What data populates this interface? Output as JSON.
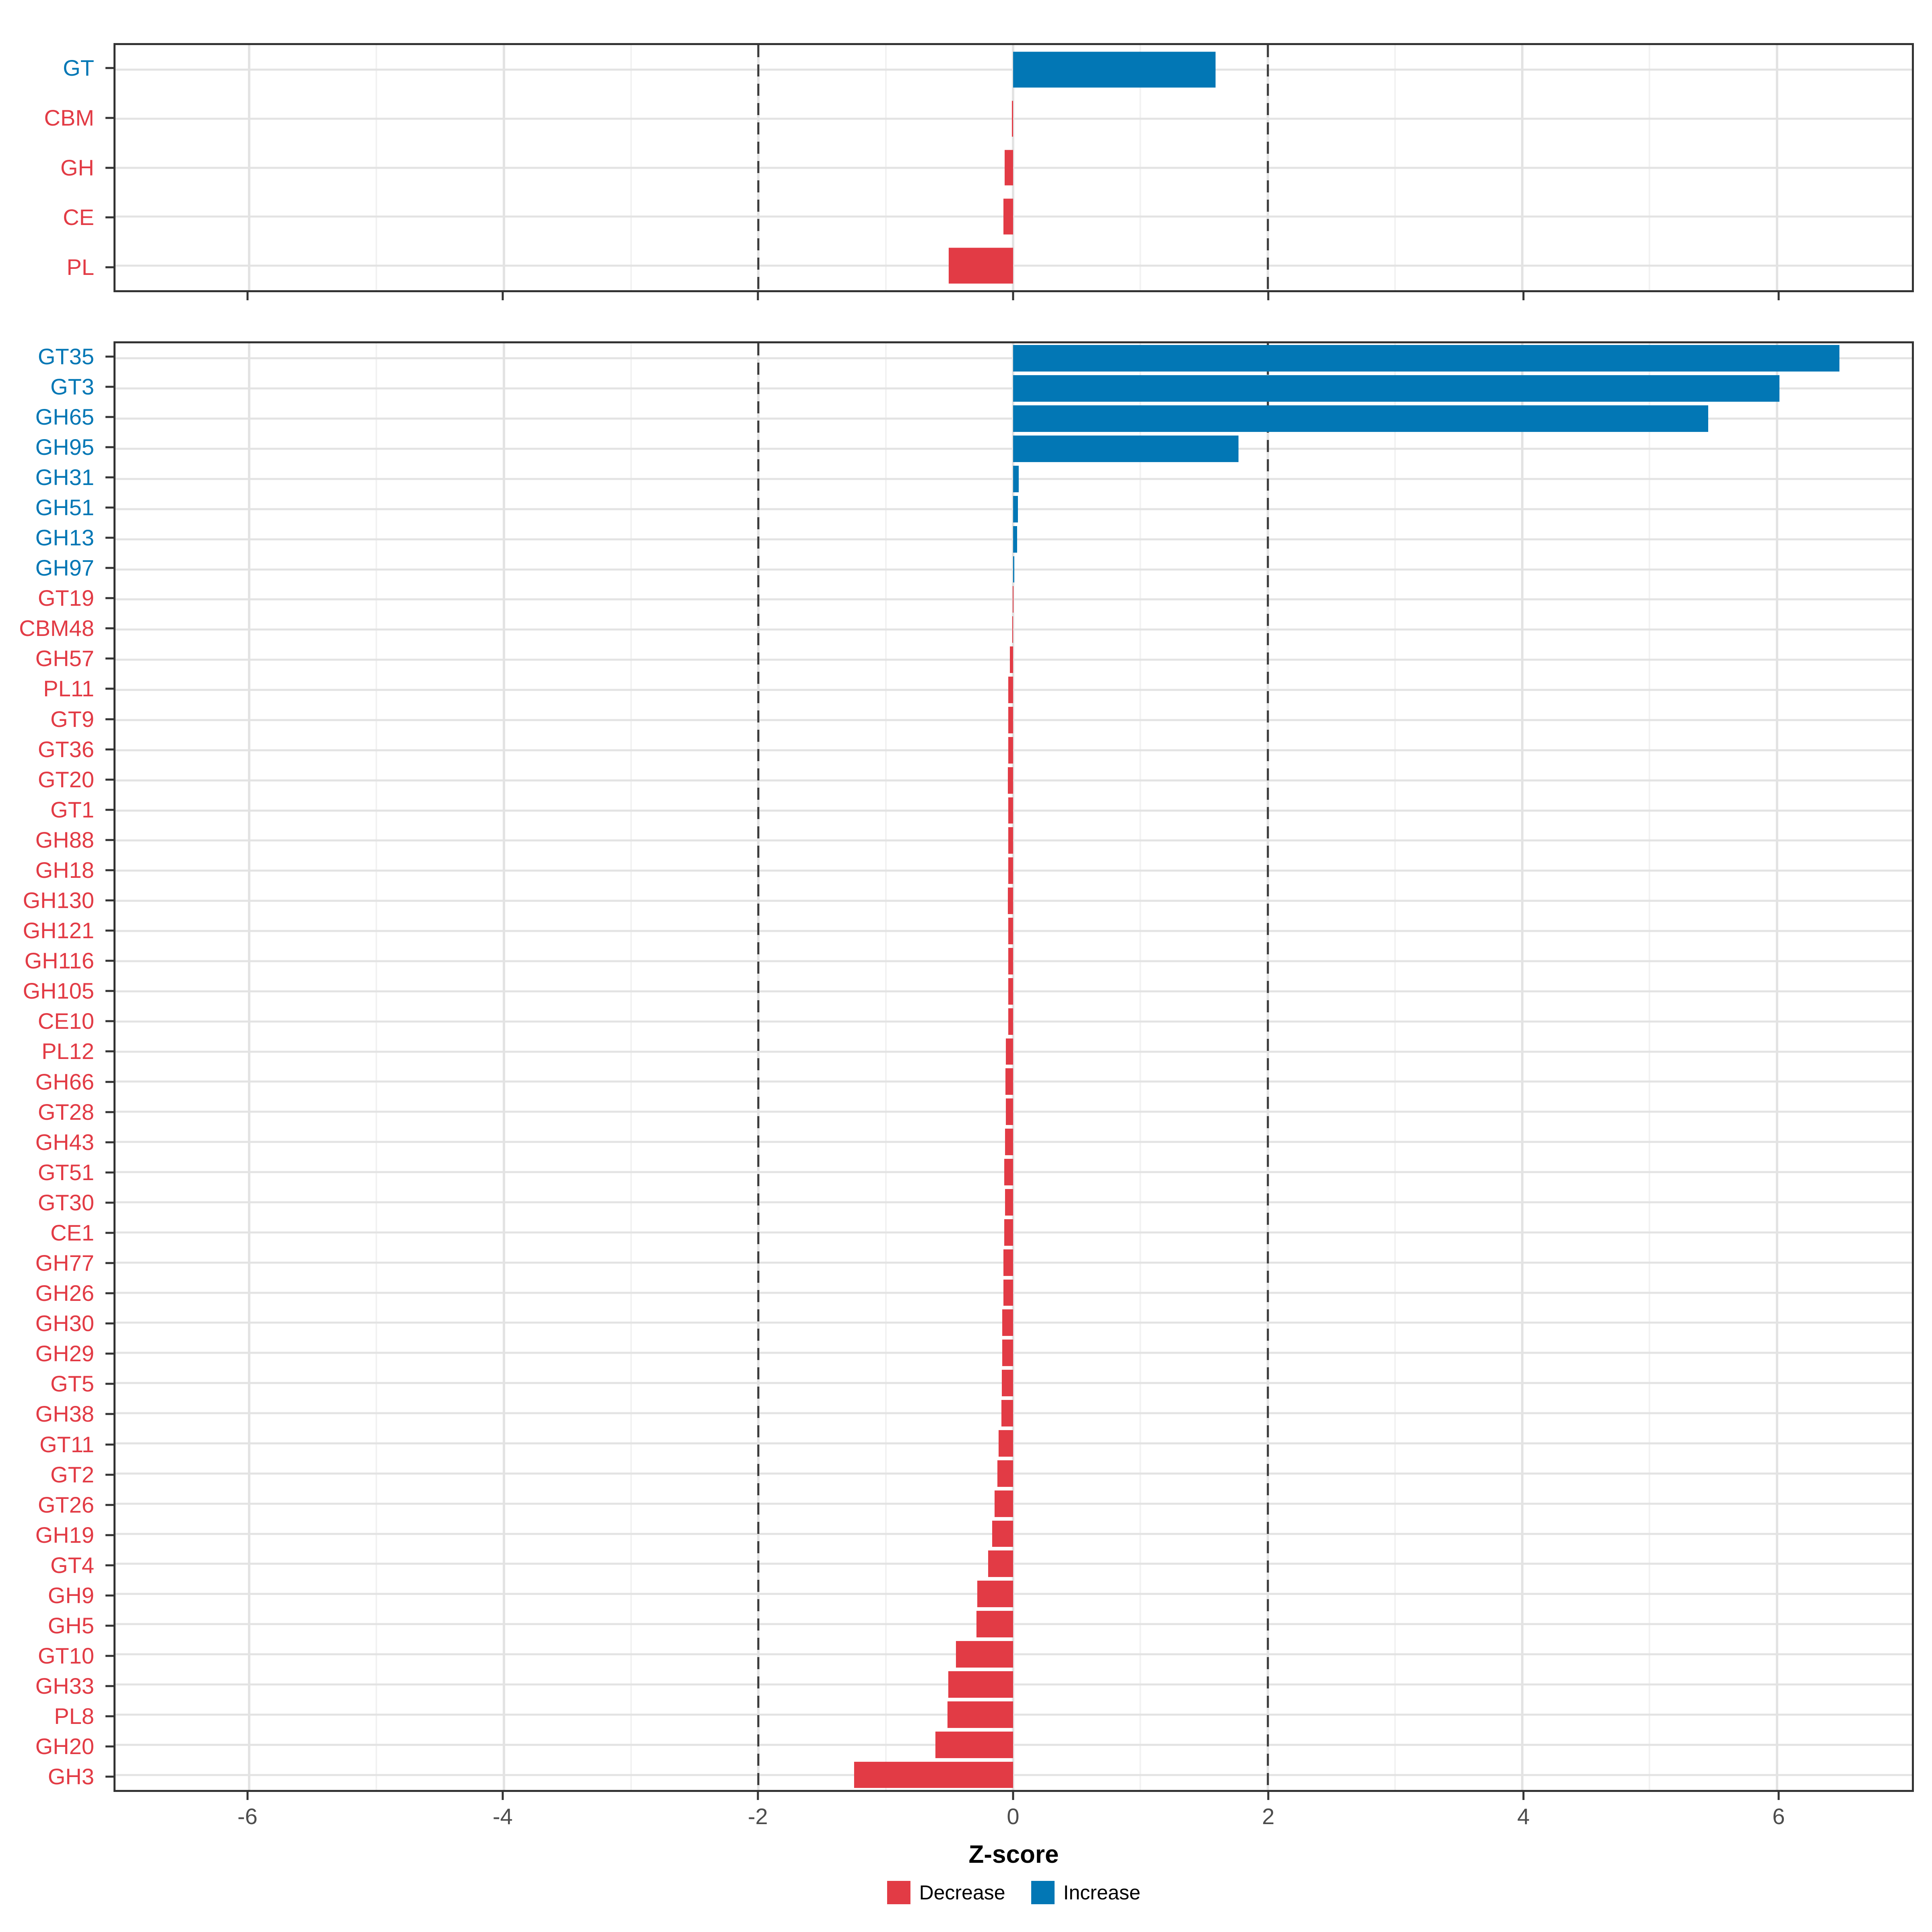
{
  "figure": {
    "background": "#FFFFFF",
    "colors": {
      "increase": "#0277B5",
      "decrease": "#E23B45",
      "grid_major": "#E3E3E3",
      "grid_minor": "#F2F2F2",
      "panel_border": "#333333",
      "dashed_line": "#3A3A3A",
      "axis_text": "#4D4D4D"
    }
  },
  "chart_data": {
    "type": "bar",
    "orientation": "horizontal",
    "title": "",
    "xlabel": "Z-score",
    "ylabel": "",
    "xlim": [
      -7.05,
      7.06
    ],
    "x_ticks": [
      -6,
      -4,
      -2,
      0,
      2,
      4,
      6
    ],
    "x_tick_labels": [
      "-6",
      "-4",
      "-2",
      "0",
      "2",
      "4",
      "6"
    ],
    "x_minor_ticks": [
      -5,
      -3,
      -1,
      1,
      3,
      5
    ],
    "reference_lines": [
      -2,
      2
    ],
    "grid": true,
    "legend_position": "bottom",
    "legend": [
      {
        "label": "Decrease",
        "color": "#E23B45",
        "key": "decrease"
      },
      {
        "label": "Increase",
        "color": "#0277B5",
        "key": "increase"
      }
    ],
    "panels": [
      {
        "name": "top",
        "rows": [
          {
            "label": "GT",
            "value": 1.59,
            "dir": "increase"
          },
          {
            "label": "CBM",
            "value": -0.01,
            "dir": "decrease"
          },
          {
            "label": "GH",
            "value": -0.066,
            "dir": "decrease"
          },
          {
            "label": "CE",
            "value": -0.077,
            "dir": "decrease"
          },
          {
            "label": "PL",
            "value": -0.506,
            "dir": "decrease"
          }
        ]
      },
      {
        "name": "bottom",
        "rows": [
          {
            "label": "GT35",
            "value": 6.49,
            "dir": "increase"
          },
          {
            "label": "GT3",
            "value": 6.02,
            "dir": "increase"
          },
          {
            "label": "GH65",
            "value": 5.46,
            "dir": "increase"
          },
          {
            "label": "GH95",
            "value": 1.77,
            "dir": "increase"
          },
          {
            "label": "GH31",
            "value": 0.045,
            "dir": "increase"
          },
          {
            "label": "GH51",
            "value": 0.037,
            "dir": "increase"
          },
          {
            "label": "GH13",
            "value": 0.032,
            "dir": "increase"
          },
          {
            "label": "GH97",
            "value": 0.01,
            "dir": "increase"
          },
          {
            "label": "GT19",
            "value": -0.003,
            "dir": "decrease"
          },
          {
            "label": "CBM48",
            "value": -0.006,
            "dir": "decrease"
          },
          {
            "label": "GH57",
            "value": -0.024,
            "dir": "decrease"
          },
          {
            "label": "PL11",
            "value": -0.039,
            "dir": "decrease"
          },
          {
            "label": "GT9",
            "value": -0.038,
            "dir": "decrease"
          },
          {
            "label": "GT36",
            "value": -0.039,
            "dir": "decrease"
          },
          {
            "label": "GT20",
            "value": -0.04,
            "dir": "decrease"
          },
          {
            "label": "GT1",
            "value": -0.038,
            "dir": "decrease"
          },
          {
            "label": "GH88",
            "value": -0.037,
            "dir": "decrease"
          },
          {
            "label": "GH18",
            "value": -0.039,
            "dir": "decrease"
          },
          {
            "label": "GH130",
            "value": -0.04,
            "dir": "decrease"
          },
          {
            "label": "GH121",
            "value": -0.038,
            "dir": "decrease"
          },
          {
            "label": "GH116",
            "value": -0.039,
            "dir": "decrease"
          },
          {
            "label": "GH105",
            "value": -0.038,
            "dir": "decrease"
          },
          {
            "label": "CE10",
            "value": -0.039,
            "dir": "decrease"
          },
          {
            "label": "PL12",
            "value": -0.056,
            "dir": "decrease"
          },
          {
            "label": "GH66",
            "value": -0.059,
            "dir": "decrease"
          },
          {
            "label": "GT28",
            "value": -0.058,
            "dir": "decrease"
          },
          {
            "label": "GH43",
            "value": -0.064,
            "dir": "decrease"
          },
          {
            "label": "GT51",
            "value": -0.068,
            "dir": "decrease"
          },
          {
            "label": "GT30",
            "value": -0.063,
            "dir": "decrease"
          },
          {
            "label": "CE1",
            "value": -0.068,
            "dir": "decrease"
          },
          {
            "label": "GH77",
            "value": -0.077,
            "dir": "decrease"
          },
          {
            "label": "GH26",
            "value": -0.077,
            "dir": "decrease"
          },
          {
            "label": "GH30",
            "value": -0.086,
            "dir": "decrease"
          },
          {
            "label": "GH29",
            "value": -0.084,
            "dir": "decrease"
          },
          {
            "label": "GT5",
            "value": -0.089,
            "dir": "decrease"
          },
          {
            "label": "GH38",
            "value": -0.091,
            "dir": "decrease"
          },
          {
            "label": "GT11",
            "value": -0.115,
            "dir": "decrease"
          },
          {
            "label": "GT2",
            "value": -0.124,
            "dir": "decrease"
          },
          {
            "label": "GT26",
            "value": -0.145,
            "dir": "decrease"
          },
          {
            "label": "GH19",
            "value": -0.163,
            "dir": "decrease"
          },
          {
            "label": "GT4",
            "value": -0.196,
            "dir": "decrease"
          },
          {
            "label": "GH9",
            "value": -0.282,
            "dir": "decrease"
          },
          {
            "label": "GH5",
            "value": -0.287,
            "dir": "decrease"
          },
          {
            "label": "GT10",
            "value": -0.45,
            "dir": "decrease"
          },
          {
            "label": "GH33",
            "value": -0.51,
            "dir": "decrease"
          },
          {
            "label": "PL8",
            "value": -0.515,
            "dir": "decrease"
          },
          {
            "label": "GH20",
            "value": -0.611,
            "dir": "decrease"
          },
          {
            "label": "GH3",
            "value": -1.25,
            "dir": "decrease"
          }
        ]
      }
    ]
  }
}
